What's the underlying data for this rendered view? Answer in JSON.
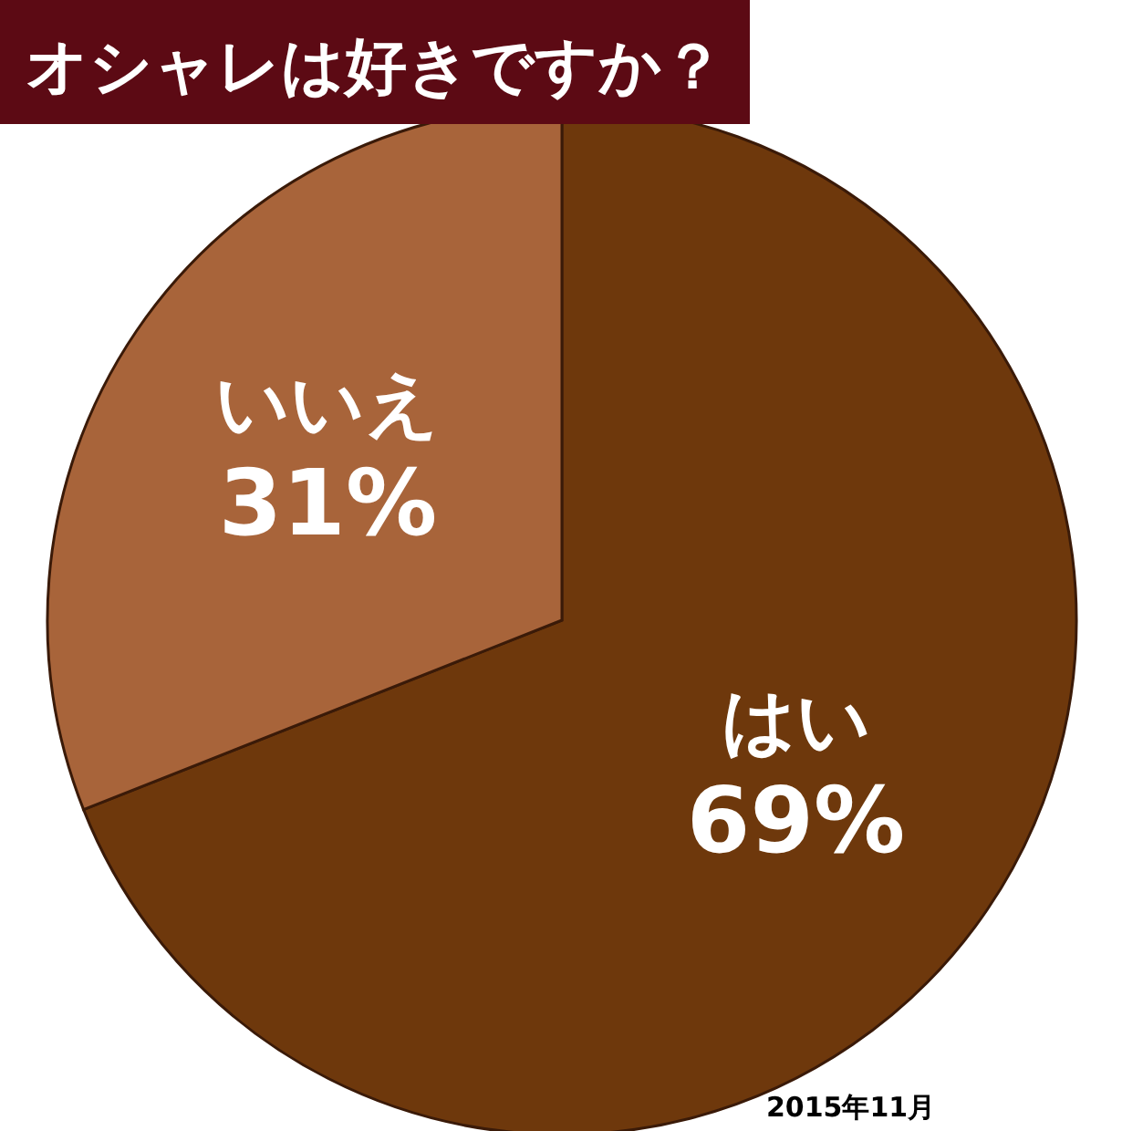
{
  "chart_data": {
    "type": "pie",
    "title": "オシャレは好きですか？",
    "categories": [
      "はい",
      "いいえ"
    ],
    "values": [
      69,
      31
    ],
    "value_labels": [
      "69%",
      "31%"
    ],
    "colors": [
      "#6e380c",
      "#a8643a"
    ],
    "annotations": [
      "2015年11月"
    ],
    "legend": false
  }
}
